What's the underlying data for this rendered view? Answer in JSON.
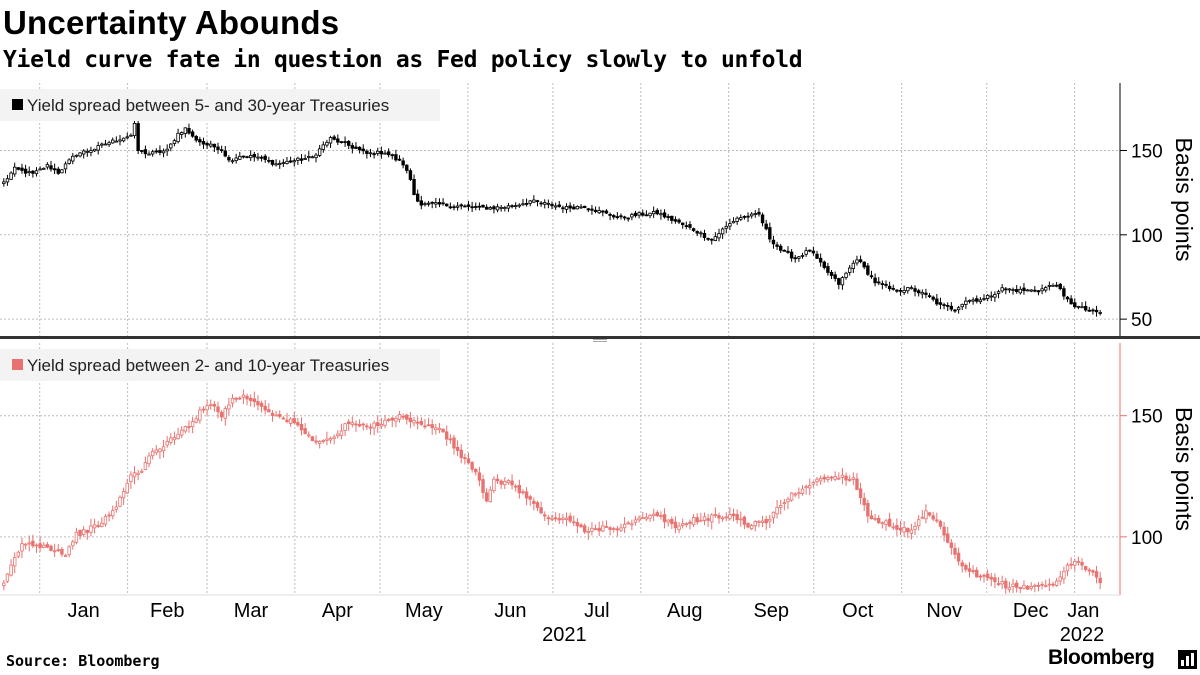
{
  "title": "Uncertainty Abounds",
  "subtitle": "Yield curve fate in question as Fed policy slowly to unfold",
  "source": "Source: Bloomberg",
  "brand": "Bloomberg",
  "brand_icon": "bar-chart-icon",
  "chart_data": [
    {
      "type": "candlestick",
      "name": "Yield spread between 5- and 30-year Treasuries",
      "legend": "Yield spread between 5- and 30-year Treasuries",
      "color": "#000000",
      "ylabel": "Basis points",
      "ylim": [
        40,
        190
      ],
      "yticks": [
        50,
        100,
        150
      ],
      "grid": true,
      "anchors": [
        [
          0,
          131
        ],
        [
          3,
          139
        ],
        [
          8,
          136
        ],
        [
          12,
          141
        ],
        [
          15,
          137
        ],
        [
          20,
          148
        ],
        [
          25,
          151
        ],
        [
          28,
          154
        ],
        [
          32,
          157
        ],
        [
          35,
          159
        ],
        [
          36,
          165
        ],
        [
          37,
          150
        ],
        [
          40,
          148
        ],
        [
          45,
          150
        ],
        [
          48,
          160
        ],
        [
          50,
          163
        ],
        [
          52,
          158
        ],
        [
          55,
          154
        ],
        [
          60,
          151
        ],
        [
          62,
          144
        ],
        [
          65,
          147
        ],
        [
          70,
          146
        ],
        [
          75,
          142
        ],
        [
          80,
          144
        ],
        [
          85,
          146
        ],
        [
          88,
          153
        ],
        [
          90,
          157
        ],
        [
          95,
          153
        ],
        [
          100,
          148
        ],
        [
          105,
          149
        ],
        [
          110,
          142
        ],
        [
          112,
          133
        ],
        [
          113,
          124
        ],
        [
          115,
          118
        ],
        [
          120,
          118
        ],
        [
          125,
          117
        ],
        [
          130,
          116
        ],
        [
          135,
          116
        ],
        [
          140,
          117
        ],
        [
          145,
          120
        ],
        [
          150,
          118
        ],
        [
          155,
          116
        ],
        [
          160,
          117
        ],
        [
          165,
          113
        ],
        [
          170,
          110
        ],
        [
          175,
          112
        ],
        [
          180,
          113
        ],
        [
          185,
          108
        ],
        [
          190,
          103
        ],
        [
          195,
          97
        ],
        [
          198,
          103
        ],
        [
          202,
          110
        ],
        [
          205,
          111
        ],
        [
          208,
          112
        ],
        [
          211,
          98
        ],
        [
          214,
          91
        ],
        [
          218,
          86
        ],
        [
          222,
          91
        ],
        [
          226,
          80
        ],
        [
          230,
          71
        ],
        [
          235,
          86
        ],
        [
          240,
          72
        ],
        [
          245,
          67
        ],
        [
          250,
          68
        ],
        [
          255,
          63
        ],
        [
          258,
          58
        ],
        [
          262,
          56
        ],
        [
          265,
          61
        ],
        [
          270,
          62
        ],
        [
          275,
          68
        ],
        [
          280,
          67
        ],
        [
          285,
          67
        ],
        [
          290,
          71
        ],
        [
          292,
          63
        ],
        [
          295,
          58
        ],
        [
          300,
          54
        ],
        [
          302,
          54
        ]
      ],
      "n": 303
    },
    {
      "type": "candlestick",
      "name": "Yield spread between 2- and 10-year Treasuries",
      "legend": "Yield spread between 2- and 10-year Treasuries",
      "color": "#e8726f",
      "ylabel": "Basis points",
      "ylim": [
        76,
        180
      ],
      "yticks": [
        100,
        150
      ],
      "grid": true,
      "anchors": [
        [
          0,
          80
        ],
        [
          2,
          88
        ],
        [
          5,
          97
        ],
        [
          8,
          97
        ],
        [
          12,
          96
        ],
        [
          17,
          93
        ],
        [
          20,
          101
        ],
        [
          25,
          104
        ],
        [
          30,
          110
        ],
        [
          32,
          116
        ],
        [
          35,
          125
        ],
        [
          38,
          128
        ],
        [
          40,
          133
        ],
        [
          43,
          137
        ],
        [
          48,
          142
        ],
        [
          52,
          148
        ],
        [
          55,
          153
        ],
        [
          58,
          155
        ],
        [
          60,
          150
        ],
        [
          63,
          157
        ],
        [
          66,
          158
        ],
        [
          70,
          155
        ],
        [
          75,
          150
        ],
        [
          80,
          147
        ],
        [
          85,
          140
        ],
        [
          90,
          140
        ],
        [
          95,
          147
        ],
        [
          100,
          145
        ],
        [
          105,
          148
        ],
        [
          110,
          150
        ],
        [
          115,
          146
        ],
        [
          120,
          145
        ],
        [
          125,
          135
        ],
        [
          130,
          127
        ],
        [
          133,
          114
        ],
        [
          135,
          123
        ],
        [
          140,
          122
        ],
        [
          145,
          115
        ],
        [
          150,
          107
        ],
        [
          155,
          108
        ],
        [
          160,
          102
        ],
        [
          165,
          104
        ],
        [
          170,
          104
        ],
        [
          175,
          107
        ],
        [
          180,
          109
        ],
        [
          185,
          104
        ],
        [
          190,
          107
        ],
        [
          195,
          108
        ],
        [
          200,
          109
        ],
        [
          205,
          105
        ],
        [
          210,
          106
        ],
        [
          215,
          115
        ],
        [
          220,
          120
        ],
        [
          225,
          124
        ],
        [
          230,
          125
        ],
        [
          234,
          124
        ],
        [
          238,
          109
        ],
        [
          242,
          106
        ],
        [
          246,
          104
        ],
        [
          250,
          102
        ],
        [
          254,
          110
        ],
        [
          258,
          104
        ],
        [
          261,
          95
        ],
        [
          264,
          87
        ],
        [
          268,
          84
        ],
        [
          272,
          82
        ],
        [
          276,
          80
        ],
        [
          280,
          79
        ],
        [
          285,
          80
        ],
        [
          290,
          81
        ],
        [
          293,
          88
        ],
        [
          296,
          90
        ],
        [
          300,
          85
        ],
        [
          302,
          81
        ]
      ],
      "n": 303
    }
  ],
  "xaxis": {
    "months": [
      "Jan",
      "Feb",
      "Mar",
      "Apr",
      "May",
      "Jun",
      "Jul",
      "Aug",
      "Sep",
      "Oct",
      "Nov",
      "Dec",
      "Jan"
    ],
    "month_starts": [
      "2021-01-01",
      "2021-02-01",
      "2021-03-01",
      "2021-04-01",
      "2021-05-01",
      "2021-06-01",
      "2021-07-01",
      "2021-08-01",
      "2021-09-01",
      "2021-10-01",
      "2021-11-01",
      "2021-12-01",
      "2022-01-01"
    ],
    "years": [
      "2021",
      "2022"
    ],
    "start": "2020-12-18",
    "end": "2022-01-17"
  }
}
